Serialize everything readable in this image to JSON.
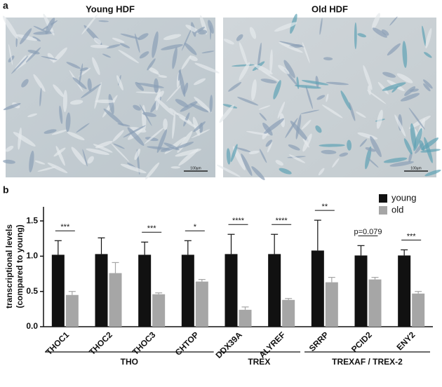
{
  "panel_labels": [
    "a",
    "b"
  ],
  "images": [
    {
      "title": "Young HDF",
      "scale_bar": "100µm"
    },
    {
      "title": "Old HDF",
      "scale_bar": "100µm"
    }
  ],
  "chart_data": {
    "type": "bar",
    "ylabel": [
      "transcriptional levels",
      "(compared to young)"
    ],
    "categories": [
      "THOC1",
      "THOC2",
      "THOC3",
      "CHTOP",
      "DDX39A",
      "ALYREF",
      "SRRP",
      "PCID2",
      "ENY2"
    ],
    "series": [
      {
        "name": "young",
        "color": "#111111",
        "values": [
          1.02,
          1.03,
          1.02,
          1.02,
          1.03,
          1.03,
          1.08,
          1.01,
          1.01
        ],
        "errors": [
          0.2,
          0.23,
          0.18,
          0.2,
          0.28,
          0.28,
          0.43,
          0.14,
          0.08
        ]
      },
      {
        "name": "old",
        "color": "#a6a6a6",
        "values": [
          0.45,
          0.76,
          0.46,
          0.64,
          0.24,
          0.38,
          0.63,
          0.67,
          0.47
        ],
        "errors": [
          0.05,
          0.15,
          0.02,
          0.03,
          0.04,
          0.02,
          0.07,
          0.03,
          0.03
        ]
      }
    ],
    "significance": [
      "***",
      null,
      "***",
      "*",
      "****",
      "****",
      "**",
      "p=0.079",
      "***"
    ],
    "groups": [
      {
        "name": "THO",
        "span": 4
      },
      {
        "name": "TREX",
        "span": 2
      },
      {
        "name": "TREXAF / TREX-2",
        "span": 3
      }
    ],
    "ylim": [
      0,
      1.7
    ],
    "yticks": [
      {
        "value": 0,
        "label": "0.0"
      },
      0.5,
      {
        "value": 1,
        "label": "1.0"
      },
      1.5
    ],
    "legend": "top-right"
  }
}
